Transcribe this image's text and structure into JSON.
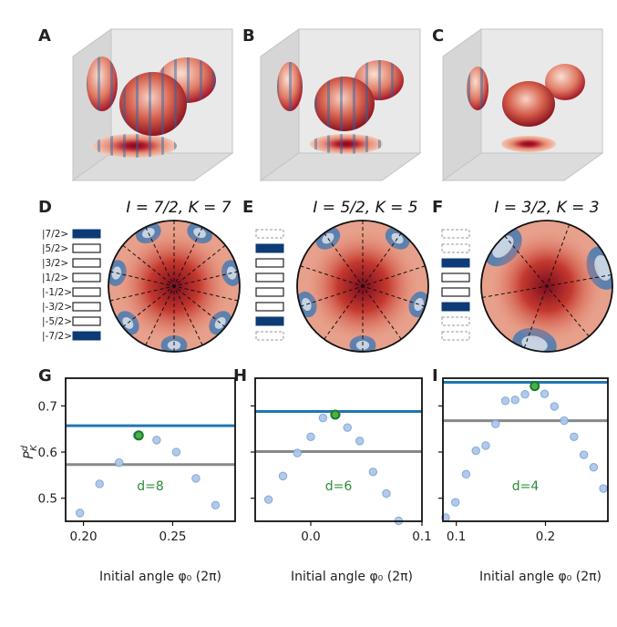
{
  "panel_labels": [
    "A",
    "B",
    "C",
    "D",
    "E",
    "F",
    "G",
    "H",
    "I"
  ],
  "titles": {
    "D": "I = 7/2, K = 7",
    "E": "I = 5/2, K = 5",
    "F": "I = 3/2, K = 3"
  },
  "kets": [
    "|7/2>",
    "|5/2>",
    "|3/2>",
    "|1/2>",
    "|-1/2>",
    "|-3/2>",
    "|-5/2>",
    "|-7/2>"
  ],
  "level_states": {
    "D": [
      "filled",
      "open",
      "open",
      "open",
      "open",
      "open",
      "open",
      "filled"
    ],
    "E": [
      "dashed",
      "filled",
      "open",
      "open",
      "open",
      "open",
      "filled",
      "dashed"
    ],
    "F": [
      "dashed",
      "dashed",
      "filled",
      "open",
      "open",
      "filled",
      "dashed",
      "dashed"
    ]
  },
  "colors": {
    "blue_line": "#1f77b4",
    "gray_line": "#888888",
    "marker_fill": "#aec7e8",
    "marker_edge": "#7aa6d6",
    "best_fill": "#4daf4a",
    "best_edge": "#1a7a2a",
    "d_label": "#2e8b3a",
    "filled_level": "#0d3b75",
    "red": "#b2182b",
    "blue": "#2166ac"
  },
  "ylabel": "P",
  "xlabel": "Initial angle φ₀ (2π)",
  "chart_data": [
    {
      "type": "scatter",
      "panel": "G",
      "annotation": "d=8",
      "xlim": [
        0.19,
        0.285
      ],
      "ylim": [
        0.45,
        0.76
      ],
      "xticks": [
        0.2,
        0.25
      ],
      "xtick_labels": [
        "0.20",
        "0.25"
      ],
      "yticks": [
        0.5,
        0.6,
        0.7
      ],
      "ytick_labels": [
        "0.5",
        "0.6",
        "0.7"
      ],
      "hline_blue": 0.657,
      "hline_gray": 0.573,
      "x": [
        0.198,
        0.209,
        0.22,
        0.23,
        0.241,
        0.252,
        0.263,
        0.274
      ],
      "y": [
        0.468,
        0.531,
        0.577,
        0.636,
        0.626,
        0.6,
        0.543,
        0.485
      ],
      "best_x": 0.231,
      "best_y": 0.636
    },
    {
      "type": "scatter",
      "panel": "H",
      "annotation": "d=6",
      "xlim": [
        -0.05,
        0.1
      ],
      "ylim": [
        0.45,
        0.76
      ],
      "xticks": [
        0.0,
        0.1
      ],
      "xtick_labels": [
        "0.0",
        "0.1"
      ],
      "yticks": [
        0.5,
        0.6,
        0.7
      ],
      "ytick_labels": [
        "",
        "",
        ""
      ],
      "hline_blue": 0.688,
      "hline_gray": 0.601,
      "x": [
        -0.038,
        -0.025,
        -0.012,
        0.0,
        0.011,
        0.023,
        0.033,
        0.044,
        0.056,
        0.068,
        0.079
      ],
      "y": [
        0.497,
        0.548,
        0.598,
        0.633,
        0.674,
        0.681,
        0.653,
        0.624,
        0.557,
        0.51,
        0.451
      ],
      "best_x": 0.022,
      "best_y": 0.681
    },
    {
      "type": "scatter",
      "panel": "I",
      "annotation": "d=4",
      "xlim": [
        0.085,
        0.27
      ],
      "ylim": [
        0.45,
        0.76
      ],
      "xticks": [
        0.1,
        0.2
      ],
      "xtick_labels": [
        "0.1",
        "0.2"
      ],
      "yticks": [
        0.5,
        0.6,
        0.7
      ],
      "ytick_labels": [
        "",
        "",
        ""
      ],
      "hline_blue": 0.751,
      "hline_gray": 0.668,
      "x": [
        0.088,
        0.099,
        0.111,
        0.122,
        0.133,
        0.144,
        0.155,
        0.166,
        0.177,
        0.188,
        0.199,
        0.21,
        0.221,
        0.232,
        0.243,
        0.254,
        0.265
      ],
      "y": [
        0.458,
        0.491,
        0.552,
        0.603,
        0.614,
        0.661,
        0.711,
        0.713,
        0.725,
        0.743,
        0.726,
        0.699,
        0.668,
        0.633,
        0.594,
        0.567,
        0.521
      ],
      "best_x": 0.188,
      "best_y": 0.743
    }
  ]
}
